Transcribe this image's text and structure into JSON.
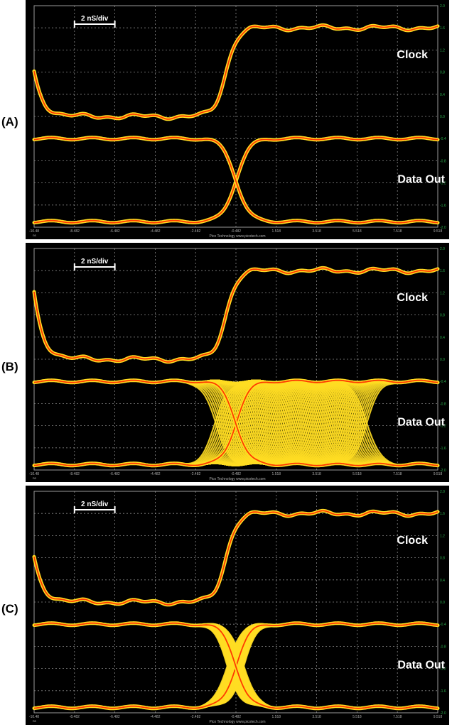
{
  "chart_data": [
    {
      "panel": "(A)",
      "type": "line",
      "scale_bar_label": "2 nS/div",
      "x_ticks": [
        "-10.48",
        "-8.482",
        "-6.482",
        "-4.482",
        "-2.482",
        "-0.482",
        "1.518",
        "3.518",
        "5.518",
        "7.518",
        "9.518"
      ],
      "x_unit": "ns",
      "right_ticks": [
        "2.0",
        "1.6",
        "1.2",
        "0.8",
        "0.4",
        "0.0",
        "-0.4",
        "-0.8",
        "-1.2",
        "-1.6",
        "-2.0"
      ],
      "footer": "Pico Technology  www.picotech.com",
      "clock_label": "Clock",
      "data_label": "Data Out",
      "clock_trace": {
        "low": 0.0,
        "high": 1.6,
        "start": 0.8,
        "rise_at": -0.982,
        "rise_width": 1.2
      },
      "data_trace": {
        "high": -0.4,
        "low": -1.9,
        "crossing_at": -0.482,
        "transition_width": 1.4,
        "jitter": "none"
      },
      "colors": {
        "background": "#000000",
        "trace_core": "#ff3a00",
        "trace_halo": "#ffdd22",
        "grid": "#8a8a8a",
        "ticks": "#2aa84a"
      }
    },
    {
      "panel": "(B)",
      "type": "line",
      "scale_bar_label": "2 nS/div",
      "x_ticks": [
        "-10.48",
        "-8.482",
        "-6.482",
        "-4.482",
        "-2.482",
        "-0.482",
        "1.518",
        "3.518",
        "5.518",
        "7.518",
        "9.518"
      ],
      "x_unit": "ns",
      "right_ticks": [
        "2.0",
        "1.6",
        "1.2",
        "0.8",
        "0.4",
        "0.0",
        "-0.4",
        "-0.8",
        "-1.2",
        "-1.6",
        "-2.0"
      ],
      "footer": "Pico Technology  www.picotech.com",
      "clock_label": "Clock",
      "data_label": "Data Out",
      "clock_trace": {
        "low": 0.0,
        "high": 1.6,
        "start": 1.2,
        "rise_at": -0.982,
        "rise_width": 1.2
      },
      "data_trace": {
        "high": -0.4,
        "low": -1.9,
        "crossing_at": -0.482,
        "transition_width": 1.4,
        "jitter": "wide",
        "spread_from": -1.5,
        "spread_to": 6.0
      },
      "colors": {
        "background": "#000000",
        "trace_core": "#ff3a00",
        "trace_halo": "#ffdd22",
        "grid": "#8a8a8a",
        "ticks": "#2aa84a"
      }
    },
    {
      "panel": "(C)",
      "type": "line",
      "scale_bar_label": "2 nS/div",
      "x_ticks": [
        "-10.48",
        "-8.482",
        "-6.482",
        "-4.482",
        "-2.482",
        "-0.482",
        "1.518",
        "3.518",
        "5.518",
        "7.518",
        "9.518"
      ],
      "x_unit": "ns",
      "right_ticks": [
        "2.0",
        "1.6",
        "1.2",
        "0.8",
        "0.4",
        "0.0",
        "-0.4",
        "-0.8",
        "-1.2",
        "-1.6",
        "-2.0"
      ],
      "footer": "Pico Technology  www.picotech.com",
      "clock_label": "Clock",
      "data_label": "Data Out",
      "clock_trace": {
        "low": 0.0,
        "high": 1.6,
        "start": 0.8,
        "rise_at": -0.982,
        "rise_width": 1.2
      },
      "data_trace": {
        "high": -0.4,
        "low": -1.9,
        "crossing_at": -0.482,
        "transition_width": 1.4,
        "jitter": "narrow",
        "spread_from": -0.9,
        "spread_to": -0.1
      },
      "colors": {
        "background": "#000000",
        "trace_core": "#ff3a00",
        "trace_halo": "#ffdd22",
        "grid": "#8a8a8a",
        "ticks": "#2aa84a"
      }
    }
  ]
}
